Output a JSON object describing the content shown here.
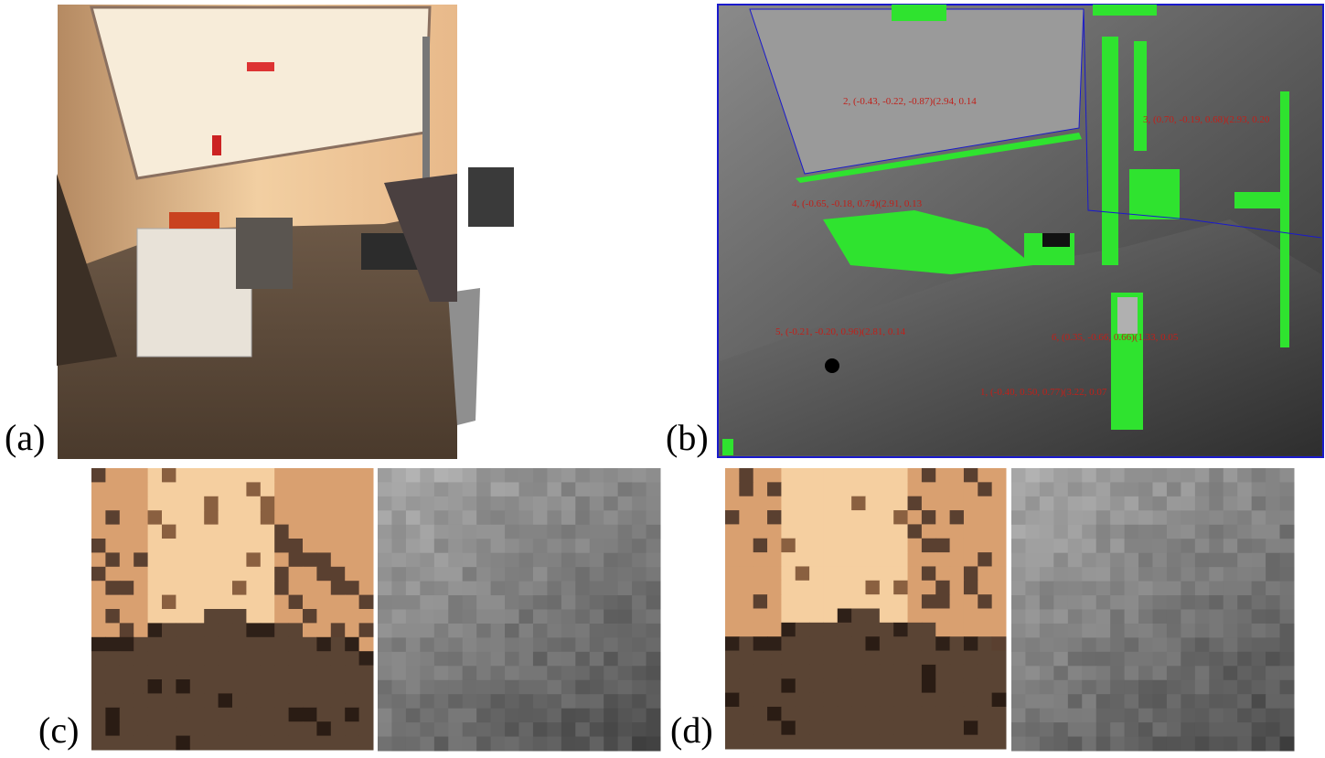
{
  "panels": [
    {
      "label": "(a)"
    },
    {
      "label": "(b)"
    },
    {
      "label": "(c)"
    },
    {
      "label": "(d)"
    }
  ],
  "annotations": [
    {
      "text": "2, (-0.43, -0.22, -0.87)(2.94, 0.14"
    },
    {
      "text": "3, (0.70, -0.19, 0.68)(2.93, 0.20"
    },
    {
      "text": "4, (-0.65, -0.18, 0.74)(2.91, 0.13"
    },
    {
      "text": "5, (-0.21, -0.20, 0.96)(2.81, 0.14"
    },
    {
      "text": "6, (0.35, -0.66, 0.66)(1.33, 0.05"
    },
    {
      "text": "1, (-0.40, 0.50, 0.77)(3.22, 0.07"
    }
  ]
}
